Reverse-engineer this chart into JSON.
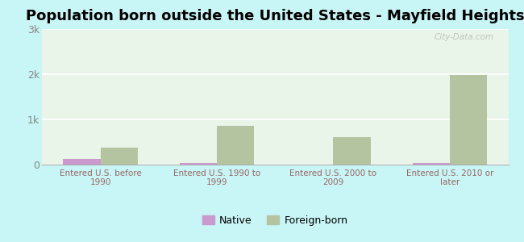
{
  "title": "Population born outside the United States - Mayfield Heights",
  "categories": [
    "Entered U.S. before\n1990",
    "Entered U.S. 1990 to\n1999",
    "Entered U.S. 2000 to\n2009",
    "Entered U.S. 2010 or\nlater"
  ],
  "native_values": [
    120,
    30,
    0,
    30
  ],
  "foreign_values": [
    380,
    850,
    600,
    1980
  ],
  "native_color": "#cc99cc",
  "foreign_color": "#b5c4a0",
  "ylim": [
    0,
    3000
  ],
  "yticks": [
    0,
    1000,
    2000,
    3000
  ],
  "ytick_labels": [
    "0",
    "1k",
    "2k",
    "3k"
  ],
  "figure_bg_color": "#c8f5f5",
  "plot_bg_color": "#e8f5e8",
  "title_fontsize": 13,
  "tick_label_color": "#996666",
  "ytick_label_color": "#888888",
  "bar_width": 0.32,
  "legend_native": "Native",
  "legend_foreign": "Foreign-born",
  "watermark": "City-Data.com"
}
